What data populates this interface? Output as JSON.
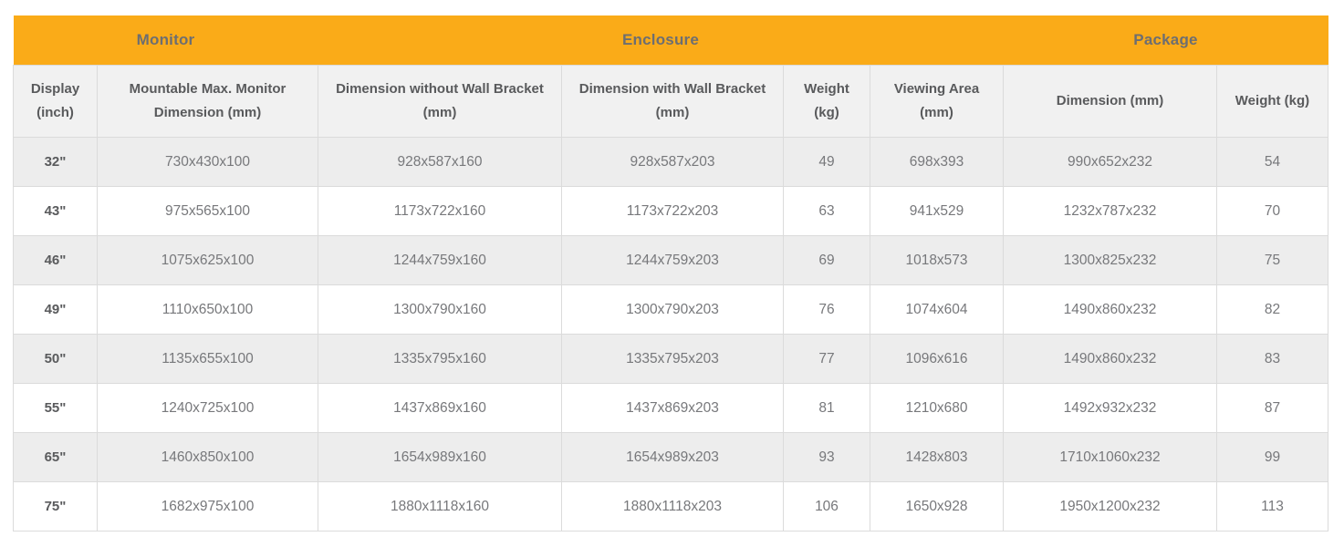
{
  "table": {
    "groups": [
      {
        "label": "Monitor"
      },
      {
        "label": "Enclosure"
      },
      {
        "label": "Package"
      }
    ],
    "columns": [
      "Display (inch)",
      "Mountable Max. Monitor Dimension (mm)",
      "Dimension without Wall Bracket (mm)",
      "Dimension with Wall Bracket (mm)",
      "Weight (kg)",
      "Viewing Area (mm)",
      "Dimension (mm)",
      "Weight (kg)"
    ],
    "rows": [
      [
        "32\"",
        "730x430x100",
        "928x587x160",
        "928x587x203",
        "49",
        "698x393",
        "990x652x232",
        "54"
      ],
      [
        "43\"",
        "975x565x100",
        "1173x722x160",
        "1173x722x203",
        "63",
        "941x529",
        "1232x787x232",
        "70"
      ],
      [
        "46\"",
        "1075x625x100",
        "1244x759x160",
        "1244x759x203",
        "69",
        "1018x573",
        "1300x825x232",
        "75"
      ],
      [
        "49\"",
        "1110x650x100",
        "1300x790x160",
        "1300x790x203",
        "76",
        "1074x604",
        "1490x860x232",
        "82"
      ],
      [
        "50\"",
        "1135x655x100",
        "1335x795x160",
        "1335x795x203",
        "77",
        "1096x616",
        "1490x860x232",
        "83"
      ],
      [
        "55\"",
        "1240x725x100",
        "1437x869x160",
        "1437x869x203",
        "81",
        "1210x680",
        "1492x932x232",
        "87"
      ],
      [
        "65\"",
        "1460x850x100",
        "1654x989x160",
        "1654x989x203",
        "93",
        "1428x803",
        "1710x1060x232",
        "99"
      ],
      [
        "75\"",
        "1682x975x100",
        "1880x1118x160",
        "1880x1118x203",
        "106",
        "1650x928",
        "1950x1200x232",
        "113"
      ]
    ],
    "colors": {
      "group_header_bg": "#FAAB18",
      "group_header_text": "#6D6E71",
      "column_header_bg": "#F1F1F1",
      "row_alt_bg": "#EDEDED",
      "cell_text": "#77787B",
      "border": "#DBDBDB"
    }
  }
}
